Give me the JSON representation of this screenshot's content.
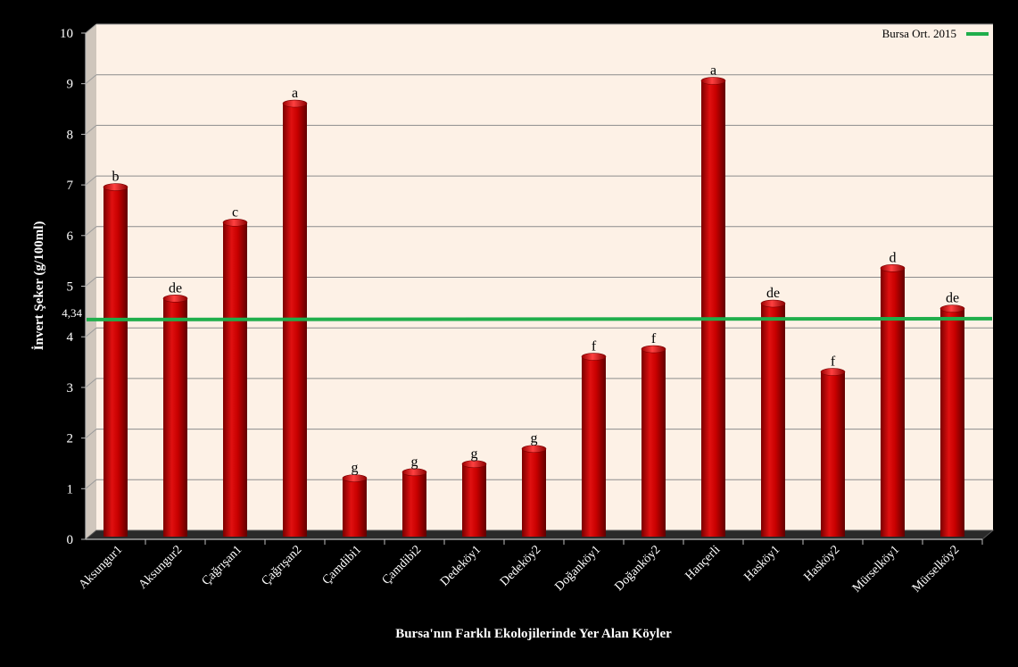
{
  "chart_data": {
    "type": "bar",
    "xlabel": "Bursa'nın Farklı Ekolojilerinde Yer Alan Köyler",
    "ylabel": "İnvert Şeker (g/100ml)",
    "ylim": [
      0,
      10
    ],
    "yticks": [
      "0",
      "1",
      "2",
      "3",
      "4",
      "5",
      "6",
      "7",
      "8",
      "9",
      "10"
    ],
    "grid": true,
    "categories": [
      "Aksungur1",
      "Aksungur2",
      "Çağrışan1",
      "Çağrışan2",
      "Çamdibi1",
      "Çamdibi2",
      "Dedeköy1",
      "Dedeköy2",
      "Doğanköy1",
      "Doğanköy2",
      "Hançerli",
      "Hasköy1",
      "Hasköy2",
      "Mürselköy1",
      "Mürselköy2"
    ],
    "values": [
      6.85,
      4.65,
      6.15,
      8.5,
      1.1,
      1.22,
      1.38,
      1.68,
      3.5,
      3.65,
      8.95,
      4.55,
      3.2,
      5.25,
      4.45
    ],
    "letters": [
      "b",
      "de",
      "c",
      "a",
      "g",
      "g",
      "g",
      "g",
      "f",
      "f",
      "a",
      "de",
      "f",
      "d",
      "de"
    ],
    "reference_line": {
      "name": "Bursa Ort. 2015",
      "value": 4.34,
      "label": "4,34"
    },
    "legend": {
      "position": "top-right",
      "entries": [
        "Bursa Ort. 2015"
      ]
    },
    "colors": {
      "bar": "#c80000",
      "reference": "#1fae4b",
      "background": "#000000",
      "plot": "#fdf1e6"
    }
  }
}
